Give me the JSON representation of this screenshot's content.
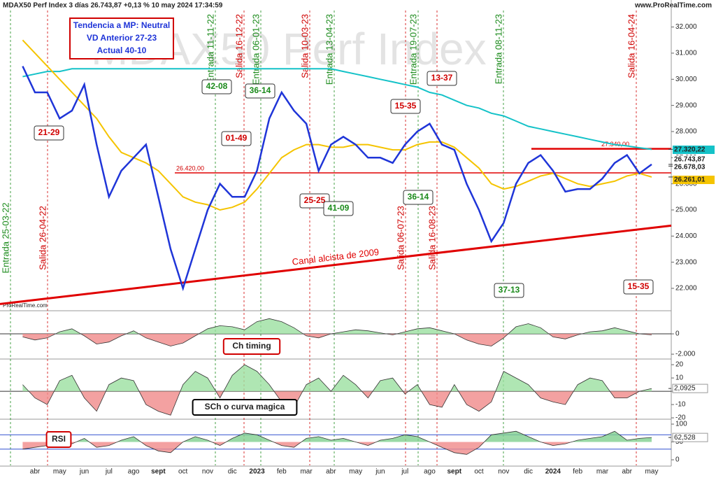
{
  "header": {
    "title": "MDAX50 Perf Index 3 días 26.743,87 +0,13 % 10 may 2024 17:34:59",
    "site": "www.ProRealTime.com",
    "watermark": "MDAX50 Perf Index",
    "watermark_small": "ProRealTime.com"
  },
  "info_box": [
    "Tendencia a MP: Neutral",
    "VD Anterior 27-23",
    "Actual 40-10"
  ],
  "chart_data": [
    {
      "type": "line",
      "categories": [
        null,
        "abr",
        null,
        "may",
        null,
        "jun",
        null,
        "jul",
        null,
        "ago",
        null,
        "sept",
        null,
        "oct",
        null,
        "nov",
        null,
        "dic",
        null,
        "2023",
        null,
        "feb",
        null,
        "mar",
        null,
        "abr",
        null,
        "may",
        null,
        "jun",
        null,
        "jul",
        null,
        "ago",
        null,
        "sept",
        null,
        "oct",
        null,
        "nov",
        null,
        "dic",
        null,
        "2024",
        null,
        "feb",
        null,
        "mar",
        null,
        "abr",
        null,
        "may"
      ],
      "series": [
        {
          "color": "#14c2c8",
          "values": [
            30100,
            30200,
            30300,
            30300,
            30400,
            30400,
            30400,
            30400,
            30400,
            30400,
            30400,
            30400,
            30400,
            30400,
            30400,
            30400,
            30400,
            30400,
            30400,
            30400,
            30400,
            30400,
            30400,
            30400,
            30400,
            30400,
            30300,
            30200,
            30100,
            30000,
            29900,
            29800,
            29700,
            29500,
            29400,
            29200,
            29000,
            28900,
            28700,
            28600,
            28400,
            28200,
            28100,
            28000,
            27900,
            27800,
            27700,
            27600,
            27500,
            27450,
            27380,
            27320
          ]
        },
        {
          "color": "#f5c400",
          "values": [
            31500,
            31000,
            30500,
            30000,
            29500,
            29000,
            28500,
            27800,
            27200,
            27000,
            26800,
            26500,
            26000,
            25500,
            25300,
            25200,
            25000,
            25100,
            25300,
            25800,
            26400,
            27000,
            27300,
            27500,
            27500,
            27400,
            27400,
            27500,
            27500,
            27400,
            27300,
            27300,
            27500,
            27600,
            27600,
            27400,
            27000,
            26600,
            26000,
            25800,
            25900,
            26100,
            26300,
            26400,
            26200,
            26000,
            25900,
            26000,
            26100,
            26300,
            26400,
            26261
          ]
        },
        {
          "color": "#1f35d8",
          "values": [
            30500,
            29500,
            29500,
            28500,
            28800,
            29800,
            27500,
            25500,
            26500,
            27000,
            27500,
            25500,
            23500,
            22000,
            23500,
            25000,
            26000,
            25500,
            25500,
            26500,
            28500,
            29500,
            28800,
            28300,
            26500,
            27500,
            27800,
            27500,
            27000,
            27000,
            26800,
            27500,
            28000,
            28300,
            27500,
            27300,
            26000,
            25000,
            23800,
            24500,
            26000,
            26800,
            27100,
            26500,
            25700,
            25800,
            25800,
            26200,
            26800,
            27100,
            26400,
            26744
          ]
        }
      ],
      "ylim": [
        21250,
        32900
      ],
      "yticks": [
        {
          "value": 32000,
          "label": "32.000"
        },
        {
          "value": 31000,
          "label": "31.000"
        },
        {
          "value": 30000,
          "label": "30.000"
        },
        {
          "value": 29000,
          "label": "29.000"
        },
        {
          "value": 28000,
          "label": "28.000"
        },
        {
          "value": 27000,
          "label": "27.000"
        },
        {
          "value": 26000,
          "label": "26.000"
        },
        {
          "value": 25000,
          "label": "25.000"
        },
        {
          "value": 24000,
          "label": "24.000"
        },
        {
          "value": 23000,
          "label": "23.000"
        },
        {
          "value": 22000,
          "label": "22.000"
        }
      ],
      "hlines": [
        {
          "value": 26420,
          "label": "26.420,00"
        },
        {
          "value": 27340,
          "label": "27.340,00"
        }
      ],
      "channel": {
        "label": "Canal alcista de 2009",
        "values": [
          21400,
          24400
        ]
      },
      "right_labels": [
        {
          "value": 27320.22,
          "label": "27.320,22",
          "color": "#14c2c8"
        },
        {
          "value": 26743.87,
          "label": "26.743,87",
          "color": "#ffffff"
        },
        {
          "value": 26678.03,
          "label": "26.678,03",
          "color": "#ffffff"
        },
        {
          "value": 26261.01,
          "label": "26.261,01",
          "color": "#f5c400"
        }
      ],
      "signals": [
        {
          "label": "21-29",
          "color": "#d00000"
        },
        {
          "label": "01-49",
          "color": "#d00000"
        },
        {
          "label": "42-08",
          "color": "#1a8a1a"
        },
        {
          "label": "36-14",
          "color": "#1a8a1a"
        },
        {
          "label": "15-35",
          "color": "#d00000"
        },
        {
          "label": "13-37",
          "color": "#d00000"
        },
        {
          "label": "25-25",
          "color": "#d00000"
        },
        {
          "label": "41-09",
          "color": "#1a8a1a"
        },
        {
          "label": "36-14",
          "color": "#1a8a1a"
        },
        {
          "label": "37-13",
          "color": "#1a8a1a"
        },
        {
          "label": "15-35",
          "color": "#d00000"
        }
      ],
      "events": [
        {
          "label": "Entrada 25-03-22",
          "color": "#1a8a1a"
        },
        {
          "label": "Salida 26-04-22",
          "color": "#d00000"
        },
        {
          "label": "Entrada 11-11-22",
          "color": "#1a8a1a"
        },
        {
          "label": "Salida 16-12-22",
          "color": "#d00000"
        },
        {
          "label": "Entrada 06-01-23",
          "color": "#1a8a1a"
        },
        {
          "label": "Salida 10-03-23",
          "color": "#d00000"
        },
        {
          "label": "Entrada 13-04-23",
          "color": "#1a8a1a"
        },
        {
          "label": "Salida 06-07-23",
          "color": "#d00000"
        },
        {
          "label": "Entrada 19-07-23",
          "color": "#1a8a1a"
        },
        {
          "label": "Salida 16-08-23",
          "color": "#d00000"
        },
        {
          "label": "Entrada 08-11-23",
          "color": "#1a8a1a"
        },
        {
          "label": "Salida 16-04-24",
          "color": "#d00000"
        }
      ]
    },
    {
      "type": "area",
      "label": "Ch timing",
      "border": "#d00000",
      "values": [
        -300,
        -600,
        -400,
        200,
        500,
        -200,
        -1000,
        -800,
        -200,
        300,
        -400,
        -800,
        -1200,
        -900,
        -200,
        500,
        800,
        700,
        400,
        1200,
        1500,
        1200,
        600,
        -200,
        -400,
        0,
        200,
        400,
        300,
        100,
        -100,
        200,
        500,
        600,
        300,
        0,
        -600,
        -1000,
        -1200,
        -400,
        700,
        1000,
        600,
        -300,
        -500,
        -100,
        200,
        300,
        600,
        300,
        0,
        -100
      ],
      "ylim": [
        -2270,
        2000
      ],
      "yticks": [
        0,
        {
          "value": -2000,
          "label": "-2.000"
        }
      ]
    },
    {
      "type": "area",
      "label": "SCh o curva magica",
      "border": "#000000",
      "values": [
        5,
        -5,
        -10,
        8,
        12,
        -5,
        -15,
        5,
        10,
        8,
        -10,
        -15,
        -18,
        5,
        15,
        10,
        -5,
        12,
        20,
        15,
        5,
        -8,
        -12,
        5,
        10,
        0,
        12,
        5,
        -5,
        8,
        10,
        -2,
        5,
        -10,
        -12,
        5,
        -10,
        -15,
        -8,
        15,
        10,
        5,
        -5,
        -8,
        -10,
        5,
        10,
        8,
        -5,
        -5,
        0,
        2.0925
      ],
      "ylim": [
        -20.5,
        23.2
      ],
      "yticks": [
        20,
        10,
        0,
        -10,
        -20
      ],
      "last_label": {
        "value": 2.0925,
        "label": "2,0925"
      }
    },
    {
      "type": "area",
      "label": "RSI",
      "border": "#d00000",
      "values": [
        30,
        35,
        40,
        50,
        45,
        60,
        35,
        40,
        55,
        65,
        40,
        25,
        20,
        50,
        65,
        55,
        40,
        60,
        75,
        70,
        55,
        40,
        35,
        60,
        65,
        55,
        60,
        50,
        40,
        55,
        60,
        70,
        65,
        50,
        35,
        20,
        15,
        35,
        70,
        75,
        80,
        65,
        50,
        40,
        45,
        55,
        60,
        65,
        80,
        55,
        60,
        62.528
      ],
      "ylim": [
        -15.7,
        111.8
      ],
      "yticks": [
        100,
        50,
        0
      ],
      "levels": [
        70,
        30
      ],
      "last_label": {
        "value": 62.528,
        "label": "62,528"
      }
    }
  ]
}
